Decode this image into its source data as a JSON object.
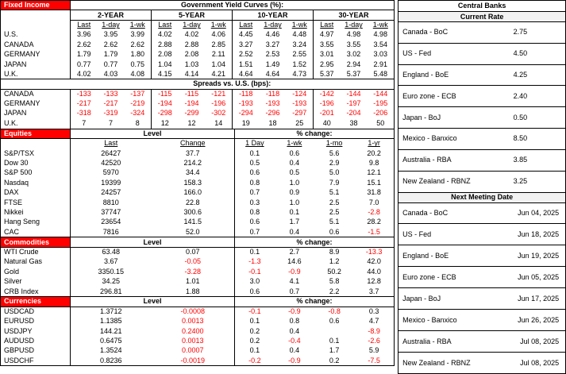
{
  "colors": {
    "section_red": "#FF0000",
    "negative_red": "#FF0000",
    "panel_header_fill": "#F2F2F2"
  },
  "fixed_income": {
    "section_label": "Fixed Income",
    "title": "Government Yield Curves (%):",
    "tenors": [
      "2-YEAR",
      "5-YEAR",
      "10-YEAR",
      "30-YEAR"
    ],
    "col_headers": [
      "Last",
      "1-day",
      "1-wk"
    ],
    "yields": [
      {
        "label": "U.S.",
        "values": [
          "3.96",
          "3.95",
          "3.99",
          "4.02",
          "4.02",
          "4.06",
          "4.45",
          "4.46",
          "4.48",
          "4.97",
          "4.98",
          "4.98"
        ]
      },
      {
        "label": "CANADA",
        "values": [
          "2.62",
          "2.62",
          "2.62",
          "2.88",
          "2.88",
          "2.85",
          "3.27",
          "3.27",
          "3.24",
          "3.55",
          "3.55",
          "3.54"
        ]
      },
      {
        "label": "GERMANY",
        "values": [
          "1.79",
          "1.79",
          "1.80",
          "2.08",
          "2.08",
          "2.11",
          "2.52",
          "2.53",
          "2.55",
          "3.01",
          "3.02",
          "3.03"
        ]
      },
      {
        "label": "JAPAN",
        "values": [
          "0.77",
          "0.77",
          "0.75",
          "1.04",
          "1.03",
          "1.04",
          "1.51",
          "1.49",
          "1.52",
          "2.95",
          "2.94",
          "2.91"
        ]
      },
      {
        "label": "U.K.",
        "values": [
          "4.02",
          "4.03",
          "4.08",
          "4.15",
          "4.14",
          "4.21",
          "4.64",
          "4.64",
          "4.73",
          "5.37",
          "5.37",
          "5.48"
        ]
      }
    ],
    "spreads_title": "Spreads vs. U.S. (bps):",
    "spreads": [
      {
        "label": "CANADA",
        "values": [
          "-133",
          "-133",
          "-137",
          "-115",
          "-115",
          "-121",
          "-118",
          "-118",
          "-124",
          "-142",
          "-144",
          "-144"
        ]
      },
      {
        "label": "GERMANY",
        "values": [
          "-217",
          "-217",
          "-219",
          "-194",
          "-194",
          "-196",
          "-193",
          "-193",
          "-193",
          "-196",
          "-197",
          "-195"
        ]
      },
      {
        "label": "JAPAN",
        "values": [
          "-318",
          "-319",
          "-324",
          "-298",
          "-299",
          "-302",
          "-294",
          "-296",
          "-297",
          "-201",
          "-204",
          "-206"
        ]
      },
      {
        "label": "U.K.",
        "values": [
          "7",
          "7",
          "8",
          "12",
          "12",
          "14",
          "19",
          "18",
          "25",
          "40",
          "38",
          "50"
        ]
      }
    ]
  },
  "equities": {
    "section_label": "Equities",
    "level_header": "Level",
    "pct_header": "% change:",
    "col_headers": [
      "Last",
      "Change",
      "1 Day",
      "1-wk",
      "1-mo",
      "1-yr"
    ],
    "rows": [
      {
        "label": "S&P/TSX",
        "values": [
          "26427",
          "37.7",
          "0.1",
          "0.6",
          "5.6",
          "20.2"
        ]
      },
      {
        "label": "Dow 30",
        "values": [
          "42520",
          "214.2",
          "0.5",
          "0.4",
          "2.9",
          "9.8"
        ]
      },
      {
        "label": "S&P 500",
        "values": [
          "5970",
          "34.4",
          "0.6",
          "0.5",
          "5.0",
          "12.1"
        ]
      },
      {
        "label": "Nasdaq",
        "values": [
          "19399",
          "158.3",
          "0.8",
          "1.0",
          "7.9",
          "15.1"
        ]
      },
      {
        "label": "DAX",
        "values": [
          "24257",
          "166.0",
          "0.7",
          "0.9",
          "5.1",
          "31.8"
        ]
      },
      {
        "label": "FTSE",
        "values": [
          "8810",
          "22.8",
          "0.3",
          "1.0",
          "2.5",
          "7.0"
        ]
      },
      {
        "label": "Nikkei",
        "values": [
          "37747",
          "300.6",
          "0.8",
          "0.1",
          "2.5",
          "-2.8"
        ]
      },
      {
        "label": "Hang Seng",
        "values": [
          "23654",
          "141.5",
          "0.6",
          "1.7",
          "5.1",
          "28.2"
        ]
      },
      {
        "label": "CAC",
        "values": [
          "7816",
          "52.0",
          "0.7",
          "0.4",
          "0.6",
          "-1.5"
        ]
      }
    ]
  },
  "commodities": {
    "section_label": "Commodities",
    "level_header": "Level",
    "pct_header": "% change:",
    "rows": [
      {
        "label": "WTI Crude",
        "values": [
          "63.48",
          "0.07",
          "0.1",
          "2.7",
          "8.9",
          "-13.3"
        ]
      },
      {
        "label": "Natural Gas",
        "values": [
          "3.67",
          "-0.05",
          "-1.3",
          "14.6",
          "1.2",
          "42.0"
        ]
      },
      {
        "label": "Gold",
        "values": [
          "3350.15",
          "-3.28",
          "-0.1",
          "-0.9",
          "50.2",
          "44.0"
        ]
      },
      {
        "label": "Silver",
        "values": [
          "34.25",
          "1.01",
          "3.0",
          "4.1",
          "5.8",
          "12.8"
        ]
      },
      {
        "label": "CRB Index",
        "values": [
          "296.81",
          "1.88",
          "0.6",
          "0.7",
          "2.2",
          "3.7"
        ]
      }
    ]
  },
  "currencies": {
    "section_label": "Currencies",
    "level_header": "Level",
    "pct_header": "% change:",
    "change_column_always_red": true,
    "rows": [
      {
        "label": "USDCAD",
        "values": [
          "1.3712",
          "-0.0008",
          "-0.1",
          "-0.9",
          "-0.8",
          "0.3"
        ]
      },
      {
        "label": "EURUSD",
        "values": [
          "1.1385",
          "0.0013",
          "0.1",
          "0.8",
          "0.6",
          "4.7"
        ]
      },
      {
        "label": "USDJPY",
        "values": [
          "144.21",
          "0.2400",
          "0.2",
          "0.4",
          "",
          "-8.9"
        ]
      },
      {
        "label": "AUDUSD",
        "values": [
          "0.6475",
          "0.0013",
          "0.2",
          "-0.4",
          "0.1",
          "-2.6"
        ]
      },
      {
        "label": "GBPUSD",
        "values": [
          "1.3524",
          "0.0007",
          "0.1",
          "0.4",
          "1.7",
          "5.9"
        ]
      },
      {
        "label": "USDCHF",
        "values": [
          "0.8236",
          "-0.0019",
          "-0.2",
          "-0.9",
          "0.2",
          "-7.5"
        ]
      }
    ]
  },
  "central_banks": {
    "title": "Central Banks",
    "current_rate_header": "Current Rate",
    "current_rates": [
      {
        "name": "Canada - BoC",
        "value": "2.75"
      },
      {
        "name": "US - Fed",
        "value": "4.50"
      },
      {
        "name": "England - BoE",
        "value": "4.25"
      },
      {
        "name": "Euro zone - ECB",
        "value": "2.40"
      },
      {
        "name": "Japan - BoJ",
        "value": "0.50"
      },
      {
        "name": "Mexico - Banxico",
        "value": "8.50"
      },
      {
        "name": "Australia - RBA",
        "value": "3.85"
      },
      {
        "name": "New Zealand - RBNZ",
        "value": "3.25"
      }
    ],
    "meeting_header": "Next Meeting Date",
    "next_meetings": [
      {
        "name": "Canada - BoC",
        "value": "Jun 04, 2025"
      },
      {
        "name": "US - Fed",
        "value": "Jun 18, 2025"
      },
      {
        "name": "England - BoE",
        "value": "Jun 19, 2025"
      },
      {
        "name": "Euro zone - ECB",
        "value": "Jun 05, 2025"
      },
      {
        "name": "Japan - BoJ",
        "value": "Jun 17, 2025"
      },
      {
        "name": "Mexico - Banxico",
        "value": "Jun 26, 2025"
      },
      {
        "name": "Australia - RBA",
        "value": "Jul 08, 2025"
      },
      {
        "name": "New Zealand - RBNZ",
        "value": "Jul 08, 2025"
      }
    ]
  }
}
